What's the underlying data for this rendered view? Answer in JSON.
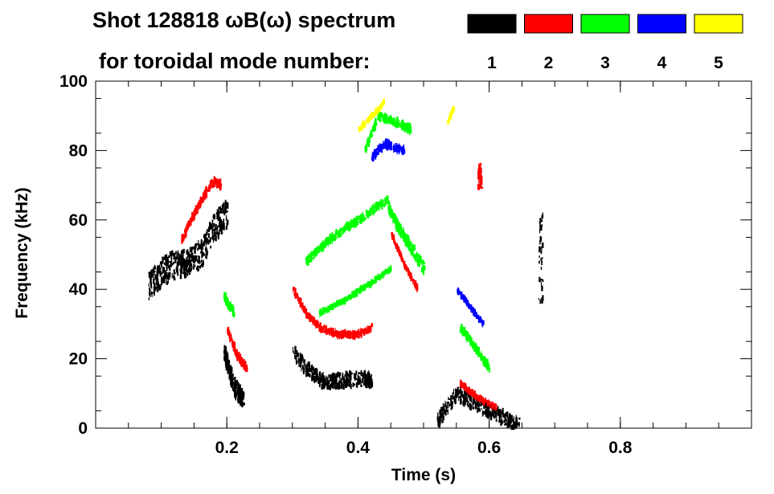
{
  "chart_data": {
    "type": "scatter",
    "title": "Shot 128818 ωB(ω) spectrum",
    "subtitle": "for toroidal mode number:",
    "xlabel": "Time (s)",
    "ylabel": "Frequency (kHz)",
    "xlim": [
      0.0,
      1.0
    ],
    "ylim": [
      0,
      100
    ],
    "x_ticks": [
      0.2,
      0.4,
      0.6,
      0.8
    ],
    "x_tick_labels": [
      "0.2",
      "0.4",
      "0.6",
      "0.8"
    ],
    "y_ticks": [
      0,
      20,
      40,
      60,
      80,
      100
    ],
    "y_tick_labels": [
      "0",
      "20",
      "40",
      "60",
      "80",
      "100"
    ],
    "grid": false,
    "legend_placement": "top-right",
    "legend": [
      {
        "label": "1",
        "color": "#000000"
      },
      {
        "label": "2",
        "color": "#ff0000"
      },
      {
        "label": "3",
        "color": "#00ff00"
      },
      {
        "label": "4",
        "color": "#0000ff"
      },
      {
        "label": "5",
        "color": "#ffff00"
      }
    ],
    "series": [
      {
        "name": "1",
        "color": "#000000",
        "segments": [
          {
            "t": [
              0.08,
              0.1,
              0.12,
              0.14,
              0.16,
              0.18,
              0.2
            ],
            "f": [
              41,
              45,
              47,
              48,
              50,
              58,
              62
            ],
            "spread": 8
          },
          {
            "t": [
              0.195,
              0.21,
              0.225
            ],
            "f": [
              22,
              12,
              8
            ],
            "spread": 5
          },
          {
            "t": [
              0.3,
              0.32,
              0.35,
              0.38,
              0.42
            ],
            "f": [
              22,
              17,
              13,
              14,
              14
            ],
            "spread": 4
          },
          {
            "t": [
              0.52,
              0.55,
              0.58,
              0.61,
              0.645
            ],
            "f": [
              2,
              10,
              7,
              4,
              1
            ],
            "spread": 4
          },
          {
            "t": [
              0.678,
              0.678
            ],
            "f": [
              36,
              62
            ],
            "spread": 1
          }
        ]
      },
      {
        "name": "2",
        "color": "#ff0000",
        "segments": [
          {
            "t": [
              0.13,
              0.15,
              0.17,
              0.18,
              0.19
            ],
            "f": [
              54,
              62,
              69,
              71,
              70
            ],
            "spread": 2
          },
          {
            "t": [
              0.2,
              0.215,
              0.23
            ],
            "f": [
              28,
              21,
              17
            ],
            "spread": 2
          },
          {
            "t": [
              0.3,
              0.32,
              0.34,
              0.37,
              0.4,
              0.42
            ],
            "f": [
              40,
              33,
              29,
              27,
              27,
              29
            ],
            "spread": 1.5
          },
          {
            "t": [
              0.45,
              0.47,
              0.49
            ],
            "f": [
              56,
              47,
              40
            ],
            "spread": 1
          },
          {
            "t": [
              0.555,
              0.58,
              0.61
            ],
            "f": [
              13,
              9,
              6
            ],
            "spread": 1
          },
          {
            "t": [
              0.585,
              0.585
            ],
            "f": [
              69,
              76
            ],
            "spread": 1
          }
        ]
      },
      {
        "name": "3",
        "color": "#00ff00",
        "segments": [
          {
            "t": [
              0.32,
              0.36,
              0.4,
              0.43,
              0.445
            ],
            "f": [
              48,
              55,
              60,
              64,
              66
            ],
            "spread": 2
          },
          {
            "t": [
              0.445,
              0.46,
              0.48,
              0.5
            ],
            "f": [
              64,
              58,
              52,
              46
            ],
            "spread": 3
          },
          {
            "t": [
              0.34,
              0.38,
              0.42,
              0.45
            ],
            "f": [
              33,
              37,
              42,
              46
            ],
            "spread": 1
          },
          {
            "t": [
              0.41,
              0.43,
              0.46,
              0.48
            ],
            "f": [
              80,
              90,
              88,
              86
            ],
            "spread": 2
          },
          {
            "t": [
              0.555,
              0.575,
              0.6
            ],
            "f": [
              29,
              24,
              17
            ],
            "spread": 2
          },
          {
            "t": [
              0.195,
              0.21
            ],
            "f": [
              38,
              33
            ],
            "spread": 2
          }
        ]
      },
      {
        "name": "4",
        "color": "#0000ff",
        "segments": [
          {
            "t": [
              0.42,
              0.44,
              0.47
            ],
            "f": [
              78,
              82,
              80
            ],
            "spread": 2
          },
          {
            "t": [
              0.55,
              0.57,
              0.59
            ],
            "f": [
              40,
              35,
              30
            ],
            "spread": 1
          }
        ]
      },
      {
        "name": "5",
        "color": "#ffff00",
        "segments": [
          {
            "t": [
              0.4,
              0.42,
              0.44
            ],
            "f": [
              86,
              90,
              94
            ],
            "spread": 1
          },
          {
            "t": [
              0.535,
              0.545
            ],
            "f": [
              88,
              92
            ],
            "spread": 1
          }
        ]
      }
    ]
  }
}
